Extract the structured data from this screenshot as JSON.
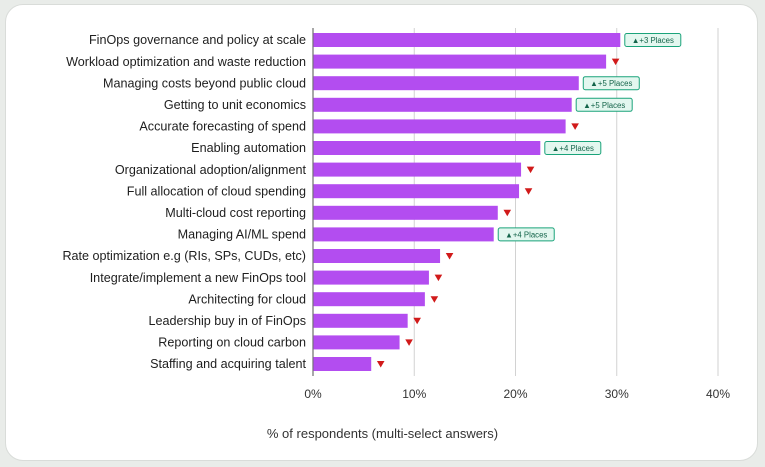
{
  "chart_data": {
    "type": "bar",
    "orientation": "horizontal",
    "xlabel": "% of respondents (multi-select answers)",
    "xlim": [
      0,
      40
    ],
    "xticks": [
      0,
      10,
      20,
      30,
      40
    ],
    "xtick_labels": [
      "0%",
      "10%",
      "20%",
      "30%",
      "40%"
    ],
    "grid": true,
    "bar_color": "#b34df0",
    "up_color": "#1aa37a",
    "down_color": "#d11a1a",
    "categories": [
      "FinOps governance and policy at scale",
      "Workload optimization and waste reduction",
      "Managing costs beyond public cloud",
      "Getting to unit economics",
      "Accurate forecasting of spend",
      "Enabling automation",
      "Organizational adoption/alignment",
      "Full allocation of cloud spending",
      "Multi-cloud cost reporting",
      "Managing AI/ML spend",
      "Rate optimization e.g (RIs, SPs, CUDs, etc)",
      "Integrate/implement a new FinOps tool",
      "Architecting for cloud",
      "Leadership buy in of FinOps",
      "Reporting on cloud carbon",
      "Staffing and acquiring talent"
    ],
    "values": [
      30.3,
      28.9,
      26.2,
      25.5,
      24.9,
      22.4,
      20.5,
      20.3,
      18.2,
      17.8,
      12.5,
      11.4,
      11.0,
      9.3,
      8.5,
      5.7
    ],
    "rank_changes": [
      {
        "direction": "up",
        "label": "▲+3 Places"
      },
      {
        "direction": "down",
        "label": ""
      },
      {
        "direction": "up",
        "label": "▲+5 Places"
      },
      {
        "direction": "up",
        "label": "▲+5 Places"
      },
      {
        "direction": "down",
        "label": ""
      },
      {
        "direction": "up",
        "label": "▲+4 Places"
      },
      {
        "direction": "down",
        "label": ""
      },
      {
        "direction": "down",
        "label": ""
      },
      {
        "direction": "down",
        "label": ""
      },
      {
        "direction": "up",
        "label": "▲+4 Places"
      },
      {
        "direction": "down",
        "label": ""
      },
      {
        "direction": "down",
        "label": ""
      },
      {
        "direction": "down",
        "label": ""
      },
      {
        "direction": "down",
        "label": ""
      },
      {
        "direction": "down",
        "label": ""
      },
      {
        "direction": "down",
        "label": ""
      }
    ]
  }
}
